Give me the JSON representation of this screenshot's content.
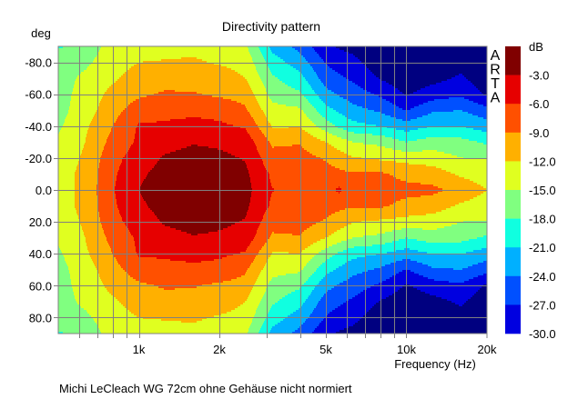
{
  "chart_data": {
    "type": "heatmap",
    "title": "Directivity pattern",
    "ylabel": "deg",
    "xlabel": "Frequency (Hz)",
    "caption": "Michi LeCleach WG 72cm ohne Gehäuse nicht normiert",
    "watermark": [
      "A",
      "R",
      "T",
      "A"
    ],
    "x_scale": "log",
    "xlim": [
      500,
      20000
    ],
    "ylim": [
      -90,
      90
    ],
    "y_inverted": true,
    "grid": true,
    "x_ticks": [
      {
        "value": 1000,
        "label": "1k"
      },
      {
        "value": 2000,
        "label": "2k"
      },
      {
        "value": 5000,
        "label": "5k"
      },
      {
        "value": 10000,
        "label": "10k"
      },
      {
        "value": 20000,
        "label": "20k"
      }
    ],
    "x_gridlines": [
      600,
      700,
      800,
      900,
      1000,
      2000,
      3000,
      4000,
      5000,
      6000,
      7000,
      8000,
      9000,
      10000
    ],
    "y_ticks": [
      {
        "value": -80,
        "label": "-80.0"
      },
      {
        "value": -60,
        "label": "-60.0"
      },
      {
        "value": -40,
        "label": "-40.0"
      },
      {
        "value": -20,
        "label": "-20.0"
      },
      {
        "value": 0,
        "label": "0.0"
      },
      {
        "value": 20,
        "label": "20.0"
      },
      {
        "value": 40,
        "label": "40.0"
      },
      {
        "value": 60,
        "label": "60.0"
      },
      {
        "value": 80,
        "label": "80.0"
      }
    ],
    "colorbar": {
      "unit": "dB",
      "labels": [
        "-3.0",
        "-6.0",
        "-9.0",
        "-12.0",
        "-15.0",
        "-18.0",
        "-21.0",
        "-24.0",
        "-27.0",
        "-30.0"
      ],
      "levels": [
        -3,
        -6,
        -9,
        -12,
        -15,
        -18,
        -21,
        -24,
        -27,
        -30
      ],
      "colors": [
        "#800000",
        "#e60000",
        "#ff5000",
        "#ffb000",
        "#e0ff20",
        "#80ff80",
        "#10ffe0",
        "#00b0ff",
        "#0050ff",
        "#0000e0"
      ],
      "below_color": "#000080"
    },
    "symmetric_about_0deg": true,
    "frequencies": [
      500,
      630,
      800,
      1000,
      1250,
      1600,
      2000,
      2500,
      3150,
      4000,
      5000,
      5600,
      6300,
      8000,
      10000,
      12500,
      16000,
      20000
    ],
    "angles": [
      0,
      10,
      20,
      30,
      40,
      50,
      60,
      70,
      80,
      90
    ],
    "values_db": [
      [
        -13.5,
        -11,
        -6.2,
        -3,
        -1.5,
        -1,
        -1.2,
        -2,
        -5.9,
        -7,
        -7.2,
        -5.5,
        -7.5,
        -7.5,
        -8,
        -8.3,
        -10,
        -12
      ],
      [
        -13.5,
        -11,
        -6.5,
        -3.5,
        -2,
        -1.5,
        -1.6,
        -2.4,
        -6.5,
        -7.3,
        -7.8,
        -8.3,
        -8.7,
        -8.5,
        -10,
        -10.5,
        -12.5,
        -13.5
      ],
      [
        -14,
        -11.5,
        -7,
        -4.5,
        -2.7,
        -2,
        -2.4,
        -3.2,
        -8,
        -7.9,
        -9.3,
        -10.5,
        -11.8,
        -12.5,
        -13,
        -13.5,
        -15,
        -15.2
      ],
      [
        -14.5,
        -12,
        -8,
        -5.5,
        -4,
        -3.2,
        -3.5,
        -4.2,
        -9.5,
        -9.2,
        -12,
        -13.5,
        -15,
        -15.8,
        -18,
        -16.5,
        -17,
        -18.5
      ],
      [
        -15.5,
        -12.5,
        -9,
        -5.7,
        -5.5,
        -5,
        -5.5,
        -6.3,
        -12.2,
        -12.2,
        -16.5,
        -18.5,
        -20,
        -21,
        -22.5,
        -21,
        -21,
        -22.5
      ],
      [
        -16,
        -13.5,
        -10,
        -7.5,
        -7,
        -6.8,
        -7,
        -8.6,
        -14,
        -14.5,
        -20,
        -21.5,
        -23,
        -24.5,
        -27.2,
        -24.5,
        -24,
        -26
      ],
      [
        -16,
        -14,
        -11,
        -9.5,
        -8.7,
        -8.8,
        -9.5,
        -10,
        -16,
        -17.5,
        -23,
        -24.3,
        -25.5,
        -27.5,
        -30.3,
        -28.5,
        -27.5,
        -30.5
      ],
      [
        -16,
        -14.5,
        -12.5,
        -10.5,
        -10,
        -10,
        -10.5,
        -12,
        -17.5,
        -20,
        -25.5,
        -26.5,
        -27.5,
        -30.2,
        -32,
        -31,
        -29.5,
        -32
      ],
      [
        -15.5,
        -15.5,
        -13.5,
        -12,
        -11.8,
        -11.6,
        -12.3,
        -13,
        -19.5,
        -22.5,
        -27.2,
        -28.3,
        -29,
        -32,
        -33,
        -33,
        -31,
        -33
      ],
      [
        -18.5,
        -16.5,
        -14,
        -13,
        -13,
        -12.8,
        -13.5,
        -14.5,
        -22,
        -25,
        -29.5,
        -30.3,
        -31,
        -33,
        -33,
        -33,
        -32,
        -33
      ]
    ]
  }
}
